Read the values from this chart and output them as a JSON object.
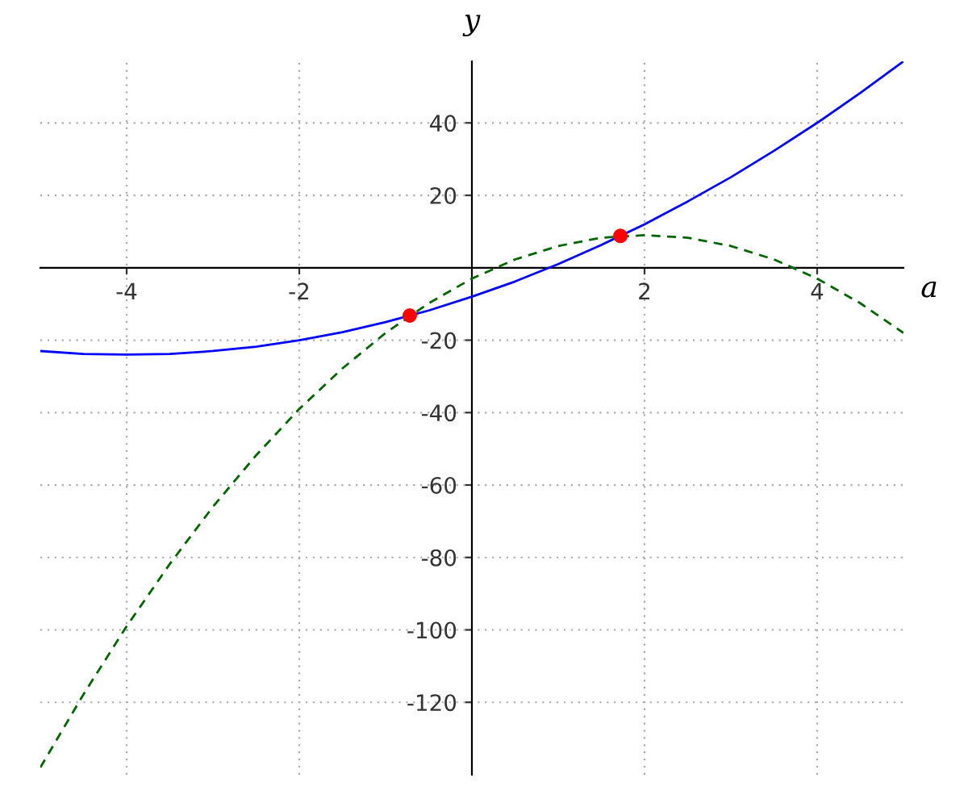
{
  "chart_data": {
    "type": "line",
    "xlabel": "a",
    "ylabel": "y",
    "xlim": [
      -5,
      5
    ],
    "ylim": [
      -140,
      57
    ],
    "xticks": [
      -4,
      -2,
      2,
      4
    ],
    "yticks": [
      -120,
      -100,
      -80,
      -60,
      -40,
      -20,
      20,
      40
    ],
    "grid": true,
    "series": [
      {
        "color": "#0000ff",
        "line_style": "solid",
        "x": [
          -5,
          -4.5,
          -4,
          -3.5,
          -3,
          -2.5,
          -2,
          -1.5,
          -1,
          -0.5,
          0,
          0.5,
          1,
          1.5,
          2,
          2.5,
          3,
          3.5,
          4,
          4.5,
          5
        ],
        "values": [
          -23,
          -23.8,
          -24,
          -23.8,
          -23,
          -21.8,
          -20,
          -17.8,
          -15,
          -11.8,
          -8,
          -3.8,
          1,
          6.3,
          12,
          18.3,
          25,
          32.3,
          40,
          48.3,
          57
        ]
      },
      {
        "color": "#006400",
        "line_style": "dashed",
        "x": [
          -5,
          -4.5,
          -4,
          -3.5,
          -3,
          -2.5,
          -2,
          -1.5,
          -1,
          -0.5,
          0,
          0.5,
          1,
          1.5,
          2,
          2.5,
          3,
          3.5,
          4,
          4.5,
          5
        ],
        "values": [
          -138,
          -117.8,
          -99,
          -81.8,
          -66,
          -51.8,
          -39,
          -27.8,
          -18,
          -9.8,
          -3,
          2.3,
          6,
          8.3,
          9,
          8.3,
          6,
          2.3,
          -3,
          -9.8,
          -18
        ]
      },
      {
        "type": "scatter",
        "color": "#ff0000",
        "marker": "circle",
        "x": [
          -0.72,
          1.72
        ],
        "values": [
          -13.2,
          8.8
        ]
      }
    ]
  }
}
